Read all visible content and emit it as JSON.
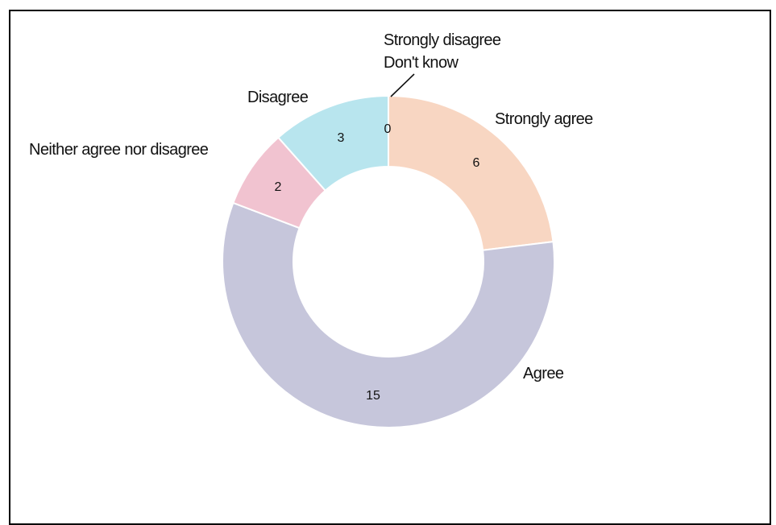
{
  "chart_data": {
    "type": "pie",
    "donut": true,
    "title": "",
    "categories": [
      "Strongly agree",
      "Agree",
      "Neither agree nor disagree",
      "Disagree",
      "Strongly disagree",
      "Don't know"
    ],
    "values": [
      6,
      15,
      2,
      3,
      0,
      0
    ],
    "value_labels": [
      "6",
      "15",
      "2",
      "3",
      "",
      "0"
    ],
    "colors": [
      "#f8d6c2",
      "#c6c6db",
      "#f1c3d0",
      "#b8e5ee",
      "#e6e6e6",
      "#e6e6e6"
    ],
    "legend": "none"
  }
}
